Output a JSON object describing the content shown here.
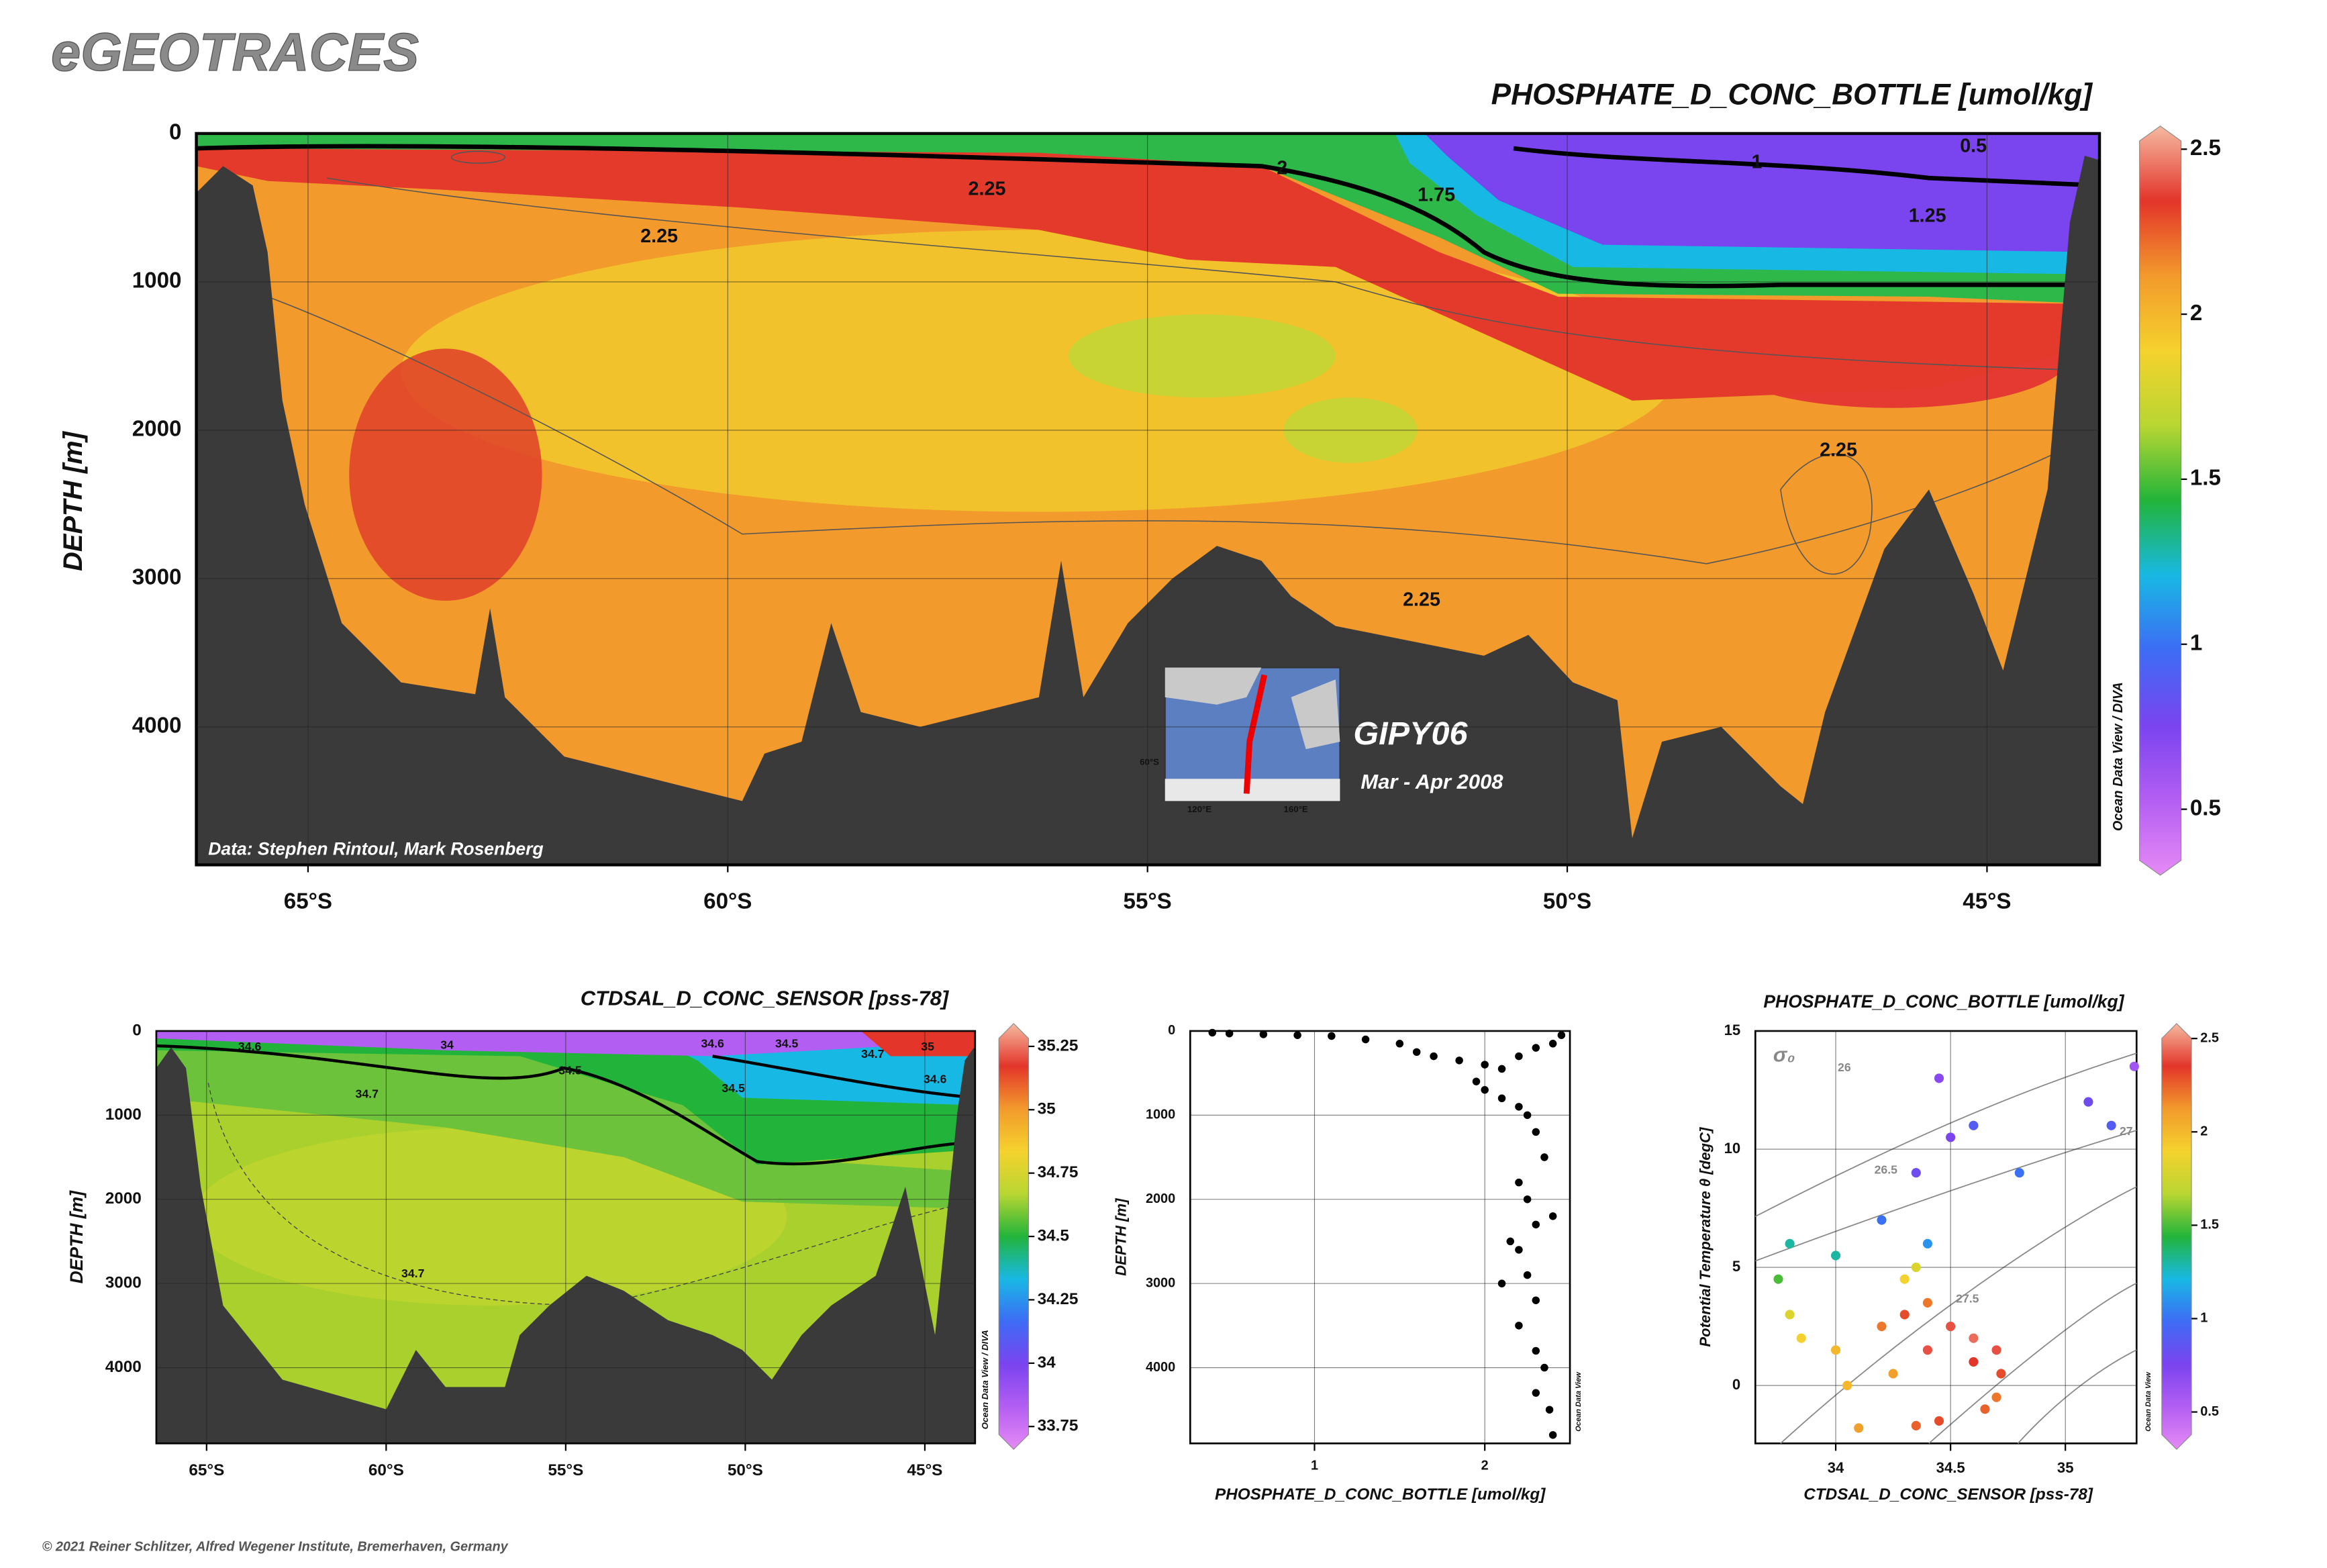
{
  "header": {
    "title": "eGEOTRACES"
  },
  "footer": {
    "copyright": "© 2021 Reiner Schlitzer, Alfred Wegener Institute, Bremerhaven, Germany"
  },
  "chart_data": [
    {
      "type": "section",
      "title": "PHOSPHATE_D_CONC_BOTTLE [umol/kg]",
      "y_label": "DEPTH [m]",
      "xlim": [
        -66.33,
        -43.66
      ],
      "xticks": [
        {
          "value": -65,
          "label": "65°S"
        },
        {
          "value": -60,
          "label": "60°S"
        },
        {
          "value": -55,
          "label": "55°S"
        },
        {
          "value": -50,
          "label": "50°S"
        },
        {
          "value": -45,
          "label": "45°S"
        }
      ],
      "ylim": [
        0,
        4930
      ],
      "y_reversed": true,
      "yticks": [
        0,
        1000,
        2000,
        3000,
        4000
      ],
      "grid": true,
      "colorbar": {
        "lim": [
          0.3,
          2.57
        ],
        "ticks": [
          0.5,
          1,
          1.5,
          2,
          2.5
        ],
        "colors": [
          "#e68af5",
          "#b35ef2",
          "#7a44ef",
          "#3d6cf5",
          "#18b8e4",
          "#22b43a",
          "#b8d632",
          "#f5d22d",
          "#f29a2c",
          "#e3352a",
          "#f5b9a0"
        ]
      },
      "contour_labels": [
        2.25,
        2.25,
        2,
        1.75,
        1,
        0.5,
        1.25,
        2.25,
        2.25
      ],
      "source": "Data: Stephen Rintoul, Mark Rosenberg",
      "cruise": "GIPY06",
      "period": "Mar - Apr 2008",
      "credit": "Ocean Data View / DIVA",
      "inset_labels": [
        "120°E",
        "160°E",
        "60°S"
      ]
    },
    {
      "type": "section",
      "title": "CTDSAL_D_CONC_SENSOR [pss-78]",
      "y_label": "DEPTH [m]",
      "xlim": [
        -66.4,
        -43.6
      ],
      "xticks": [
        {
          "value": -65,
          "label": "65°S"
        },
        {
          "value": -60,
          "label": "60°S"
        },
        {
          "value": -55,
          "label": "55°S"
        },
        {
          "value": -50,
          "label": "50°S"
        },
        {
          "value": -45,
          "label": "45°S"
        }
      ],
      "ylim": [
        0,
        4900
      ],
      "y_reversed": true,
      "yticks": [
        0,
        1000,
        2000,
        3000,
        4000
      ],
      "grid": true,
      "colorbar": {
        "lim": [
          33.66,
          35.34
        ],
        "ticks": [
          33.75,
          34,
          34.25,
          34.5,
          34.75,
          35,
          35.25
        ],
        "colors": [
          "#e68af5",
          "#b35ef2",
          "#7a44ef",
          "#3d6cf5",
          "#18b8e4",
          "#22b43a",
          "#b8d632",
          "#f5d22d",
          "#f29a2c",
          "#e3352a",
          "#f5b9a0"
        ]
      },
      "contour_labels": [
        34.6,
        34,
        34.5,
        34.7,
        34.6,
        34.5,
        34.7,
        34.5,
        35,
        34.6,
        34.7
      ],
      "credit": "Ocean Data View / DIVA"
    },
    {
      "type": "scatter",
      "x_label": "PHOSPHATE_D_CONC_BOTTLE [umol/kg]",
      "y_label": "DEPTH [m]",
      "xlim": [
        0.27,
        2.5
      ],
      "xticks": [
        1,
        2
      ],
      "ylim": [
        0,
        4900
      ],
      "y_reversed": true,
      "yticks": [
        0,
        1000,
        2000,
        3000,
        4000
      ],
      "grid": true,
      "color": "#000000",
      "credit": "Ocean Data View",
      "x": [
        0.4,
        0.5,
        0.7,
        0.9,
        1.1,
        1.3,
        1.5,
        1.6,
        1.7,
        1.85,
        2.0,
        2.1,
        2.2,
        2.3,
        2.4,
        2.45,
        1.95,
        2.0,
        2.1,
        2.2,
        2.25,
        2.3,
        2.35,
        2.2,
        2.25,
        2.3,
        2.2,
        2.25,
        2.3,
        2.2,
        2.3,
        2.35,
        2.3,
        2.38,
        2.4,
        2.15,
        2.4,
        2.1
      ],
      "y": [
        20,
        30,
        40,
        50,
        60,
        100,
        150,
        250,
        300,
        350,
        400,
        450,
        300,
        200,
        150,
        50,
        600,
        700,
        800,
        900,
        1000,
        1200,
        1500,
        1800,
        2000,
        2300,
        2600,
        2900,
        3200,
        3500,
        3800,
        4000,
        4300,
        4500,
        4800,
        2500,
        2200,
        3000
      ]
    },
    {
      "type": "scatter",
      "title": "PHOSPHATE_D_CONC_BOTTLE [umol/kg]",
      "x_label": "CTDSAL_D_CONC_SENSOR [pss-78]",
      "y_label": "Potential Temperature θ [degC]",
      "xlim": [
        33.65,
        35.31
      ],
      "xticks": [
        34,
        34.5,
        35
      ],
      "ylim": [
        -2.45,
        15
      ],
      "yticks": [
        0,
        5,
        10,
        15
      ],
      "grid": true,
      "credit": "Ocean Data View",
      "isopycnal_symbol": "σ₀",
      "isopycnal_labels": [
        26,
        26.5,
        27,
        27.5
      ],
      "colorbar": {
        "lim": [
          0.3,
          2.58
        ],
        "ticks": [
          0.5,
          1,
          1.5,
          2,
          2.5
        ],
        "colors": [
          "#e68af5",
          "#b35ef2",
          "#7a44ef",
          "#3d6cf5",
          "#18b8e4",
          "#22b43a",
          "#b8d632",
          "#f5d22d",
          "#f29a2c",
          "#e3352a",
          "#f5b9a0"
        ]
      },
      "x": [
        34.45,
        34.6,
        34.8,
        35.1,
        35.3,
        35.2,
        34.5,
        34.35,
        34.4,
        34.2,
        34.0,
        33.8,
        33.75,
        33.8,
        33.85,
        34.0,
        34.1,
        34.05,
        34.2,
        34.3,
        34.4,
        34.5,
        34.6,
        34.7,
        34.72,
        34.7,
        34.65,
        34.45,
        34.35,
        34.6,
        34.4,
        34.3,
        34.35,
        34.25
      ],
      "y": [
        13,
        11,
        9,
        12,
        13.5,
        11,
        10.5,
        9,
        6,
        7,
        5.5,
        6,
        4.5,
        3,
        2,
        1.5,
        -1.8,
        0,
        2.5,
        3,
        3.5,
        2.5,
        2,
        1.5,
        0.5,
        -0.5,
        -1,
        -1.5,
        -1.7,
        1,
        1.5,
        4.5,
        5,
        0.5
      ],
      "values": [
        0.7,
        0.9,
        1.0,
        0.8,
        0.6,
        0.9,
        0.75,
        0.8,
        1.1,
        1.0,
        1.3,
        1.3,
        1.5,
        1.8,
        1.9,
        2.0,
        2.1,
        2.0,
        2.2,
        2.3,
        2.2,
        2.4,
        2.45,
        2.4,
        2.3,
        2.2,
        2.25,
        2.3,
        2.25,
        2.35,
        2.4,
        1.9,
        1.8,
        2.1
      ]
    }
  ]
}
